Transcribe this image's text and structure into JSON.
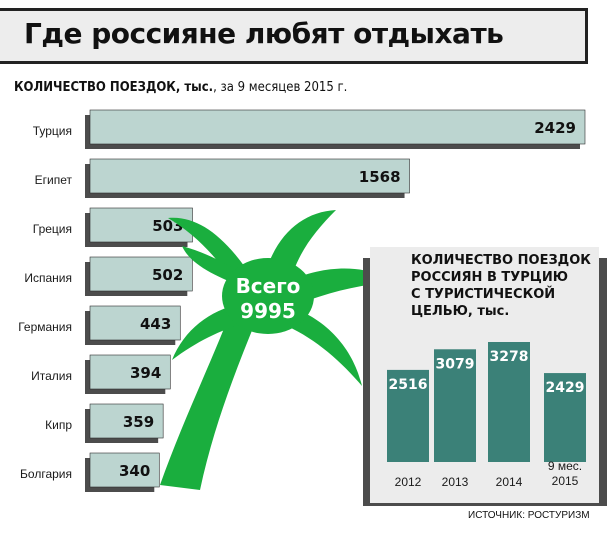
{
  "header": {
    "title": "Где россияне любят отдыхать",
    "subtitle_bold": "КОЛИЧЕСТВО ПОЕЗДОК, тыс.",
    "subtitle_rest": ", за 9 месяцев 2015 г."
  },
  "source": "ИСТОЧНИК: РОСТУРИЗМ",
  "total": {
    "line1": "Всего",
    "line2": "9995"
  },
  "colors": {
    "bar_main": "#bcd5d0",
    "bar_shadow": "#4c4c4c",
    "palm": "#1aae3e",
    "inset_bg": "#ececec",
    "inset_bar": "#3b8178"
  },
  "chart_data": [
    {
      "type": "bar",
      "orientation": "horizontal",
      "title": "КОЛИЧЕСТВО ПОЕЗДОК, тыс., за 9 месяцев 2015 г.",
      "categories": [
        "Турция",
        "Египет",
        "Греция",
        "Испания",
        "Германия",
        "Италия",
        "Кипр",
        "Болгария"
      ],
      "values": [
        2429,
        1568,
        503,
        502,
        443,
        394,
        359,
        340
      ],
      "xlim": [
        0,
        2429
      ]
    },
    {
      "type": "bar",
      "orientation": "vertical",
      "title": "КОЛИЧЕСТВО ПОЕЗДОК РОССИЯН В ТУРЦИЮ С ТУРИСТИЧЕСКОЙ ЦЕЛЬЮ, тыс.",
      "title_lines": [
        "КОЛИЧЕСТВО ПОЕЗДОК",
        "РОССИЯН В ТУРЦИЮ",
        "С ТУРИСТИЧЕСКОЙ",
        "ЦЕЛЬЮ, тыс."
      ],
      "categories": [
        "2012",
        "2013",
        "2014",
        "9 мес. 2015"
      ],
      "category_lines": [
        [
          "2012"
        ],
        [
          "2013"
        ],
        [
          "2014"
        ],
        [
          "9 мес.",
          "2015"
        ]
      ],
      "values": [
        2516,
        3079,
        3278,
        2429
      ],
      "ylim": [
        0,
        3278
      ]
    }
  ]
}
